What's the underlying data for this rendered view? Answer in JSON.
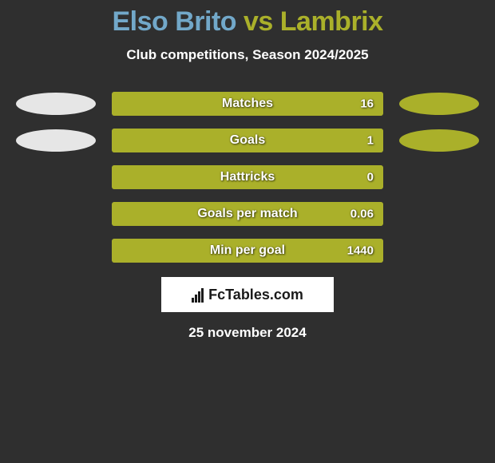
{
  "title": {
    "text": "Elso Brito vs Lambrix",
    "color_left": "#72a8c9",
    "color_right": "#aab02a"
  },
  "subtitle": "Club competitions, Season 2024/2025",
  "colors": {
    "player_left": "#e6e6e6",
    "player_right": "#aab02a",
    "background": "#2f2f2f",
    "text": "#ffffff"
  },
  "stats": [
    {
      "label": "Matches",
      "value": "16",
      "fill_pct": 100,
      "show_ovals": true
    },
    {
      "label": "Goals",
      "value": "1",
      "fill_pct": 100,
      "show_ovals": true
    },
    {
      "label": "Hattricks",
      "value": "0",
      "fill_pct": 100,
      "show_ovals": false
    },
    {
      "label": "Goals per match",
      "value": "0.06",
      "fill_pct": 100,
      "show_ovals": false
    },
    {
      "label": "Min per goal",
      "value": "1440",
      "fill_pct": 100,
      "show_ovals": false
    }
  ],
  "logo": {
    "brand": "FcTables.com"
  },
  "date": "25 november 2024",
  "typography": {
    "title_fontsize": 34,
    "subtitle_fontsize": 17,
    "label_fontsize": 16,
    "value_fontsize": 15
  }
}
